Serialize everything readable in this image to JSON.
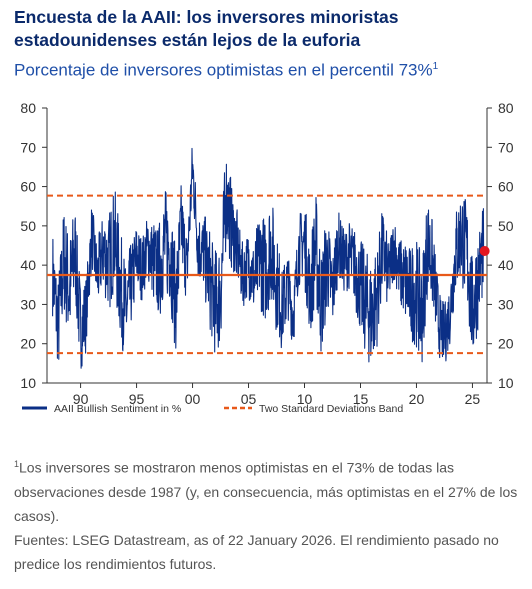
{
  "header": {
    "title": "Encuesta de la AAII: los inversores minoristas estadounidenses están lejos de la euforia",
    "subtitle": "Porcentaje de inversores optimistas en el percentil 73%",
    "subtitle_note_ref": "1"
  },
  "footnotes": {
    "note_ref": "1",
    "note_text": "Los inversores se mostraron menos optimistas en el 73% de todas las observaciones desde 1987 (y, en consecuencia, más optimistas en el 27% de los casos).",
    "sources": "Fuentes: LSEG Datastream, as of 22 January 2026. El rendimiento pasado no predice los rendimientos futuros."
  },
  "colors": {
    "series": "#0b2f86",
    "band": "#e8591a",
    "highlight": "#e3161f",
    "axis": "#333333"
  },
  "chart_data": {
    "type": "line",
    "x_ticks": [
      "90",
      "95",
      "00",
      "05",
      "10",
      "15",
      "20",
      "25"
    ],
    "x_tick_years": [
      1990,
      1995,
      2000,
      2005,
      2010,
      2015,
      2020,
      2025
    ],
    "xlim": [
      1987.0,
      2026.3
    ],
    "ylim": [
      10,
      80
    ],
    "y_ticks": [
      10,
      20,
      30,
      40,
      50,
      60,
      70,
      80
    ],
    "y_axis_right_duplicate": true,
    "grid": false,
    "legend_position": "bottom-left",
    "series": [
      {
        "name": "AAII Bullish Sentiment in %",
        "x": [
          1987.5,
          1988.0,
          1988.5,
          1989.0,
          1989.5,
          1990.0,
          1990.5,
          1991.0,
          1991.5,
          1992.0,
          1992.5,
          1993.0,
          1993.5,
          1994.0,
          1994.5,
          1995.0,
          1995.5,
          1996.0,
          1996.5,
          1997.0,
          1997.5,
          1998.0,
          1998.5,
          1999.0,
          1999.5,
          2000.0,
          2000.5,
          2001.0,
          2001.5,
          2002.0,
          2002.5,
          2003.0,
          2003.5,
          2004.0,
          2004.5,
          2005.0,
          2005.5,
          2006.0,
          2006.5,
          2007.0,
          2007.5,
          2008.0,
          2008.5,
          2009.0,
          2009.5,
          2010.0,
          2010.5,
          2011.0,
          2011.5,
          2012.0,
          2012.5,
          2013.0,
          2013.5,
          2014.0,
          2014.5,
          2015.0,
          2015.5,
          2016.0,
          2016.5,
          2017.0,
          2017.5,
          2018.0,
          2018.5,
          2019.0,
          2019.5,
          2020.0,
          2020.5,
          2021.0,
          2021.5,
          2022.0,
          2022.5,
          2023.0,
          2023.5,
          2024.0,
          2024.5,
          2025.0,
          2025.5,
          2026.0
        ],
        "values": [
          38,
          24,
          42,
          33,
          44,
          23,
          28,
          48,
          37,
          44,
          40,
          47,
          36,
          28,
          34,
          42,
          39,
          45,
          41,
          38,
          46,
          44,
          30,
          50,
          39,
          65,
          45,
          43,
          37,
          30,
          33,
          58,
          50,
          44,
          37,
          41,
          36,
          42,
          39,
          45,
          36,
          29,
          35,
          27,
          44,
          46,
          33,
          45,
          30,
          41,
          33,
          46,
          41,
          42,
          40,
          34,
          30,
          27,
          33,
          44,
          37,
          45,
          38,
          36,
          33,
          33,
          28,
          46,
          39,
          25,
          22,
          28,
          43,
          48,
          43,
          28,
          37,
          44
        ]
      }
    ],
    "reference_lines": [
      {
        "name": "Two Standard Deviations Band",
        "value": 57.7,
        "style": "dashed"
      },
      {
        "name": "mean",
        "value": 37.5,
        "style": "solid"
      },
      {
        "name": "Two Standard Deviations Band",
        "value": 17.6,
        "style": "dashed"
      }
    ],
    "highlight_point": {
      "x": 2026.0,
      "value": 43.6
    },
    "legend": [
      {
        "label": "AAII Bullish Sentiment in %",
        "style": "solid"
      },
      {
        "label": "Two Standard Deviations Band",
        "style": "dashed"
      }
    ]
  }
}
